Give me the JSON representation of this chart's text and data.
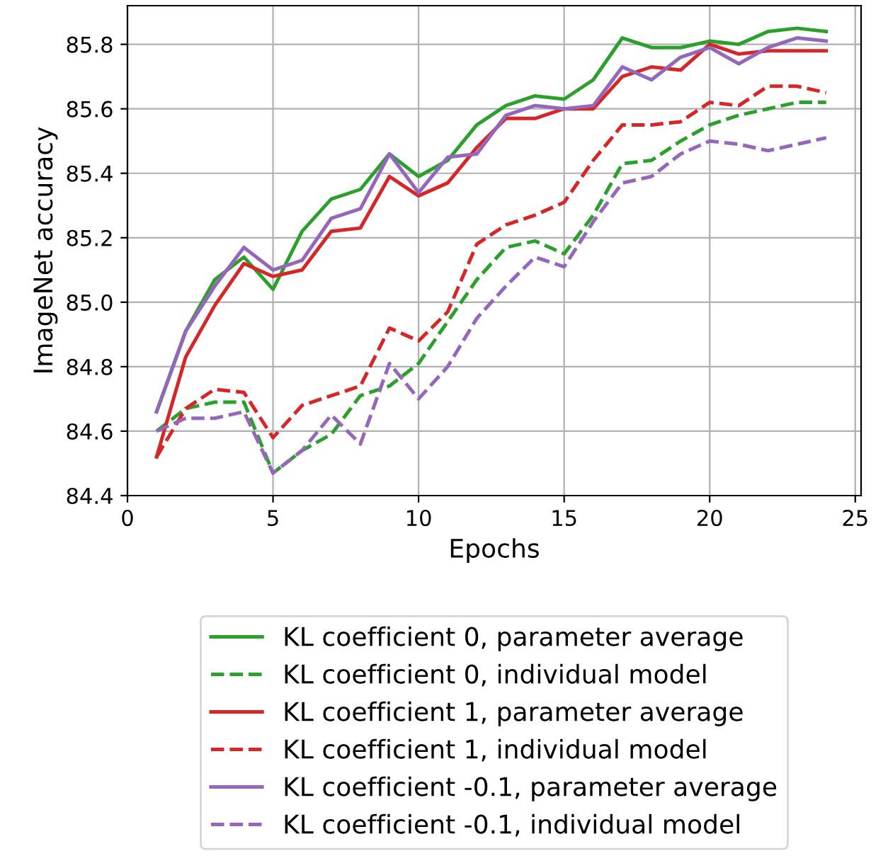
{
  "chart_data": {
    "type": "line",
    "xlabel": "Epochs",
    "ylabel": "ImageNet accuracy",
    "x": [
      1,
      2,
      3,
      4,
      5,
      6,
      7,
      8,
      9,
      10,
      11,
      12,
      13,
      14,
      15,
      16,
      17,
      18,
      19,
      20,
      21,
      22,
      23,
      24
    ],
    "xlim": [
      0,
      25.2
    ],
    "xticks": [
      0,
      5,
      10,
      15,
      20,
      25
    ],
    "ylim": [
      84.4,
      85.92
    ],
    "yticks": [
      {
        "value": 84.4,
        "label": "84.4"
      },
      {
        "value": 84.6,
        "label": "84.6"
      },
      {
        "value": 84.8,
        "label": "84.8"
      },
      {
        "value": 85.0,
        "label": "85.0"
      },
      {
        "value": 85.2,
        "label": "85.2"
      },
      {
        "value": 85.4,
        "label": "85.4"
      },
      {
        "value": 85.6,
        "label": "85.6"
      },
      {
        "value": 85.8,
        "label": "85.8"
      }
    ],
    "grid": true,
    "legend": "bottom",
    "marker": "none",
    "series": [
      {
        "name": "KL coefficient 0, parameter average",
        "color": "#2ca02c",
        "line_style": "solid",
        "values": [
          84.66,
          84.91,
          85.07,
          85.14,
          85.04,
          85.22,
          85.32,
          85.35,
          85.46,
          85.39,
          85.44,
          85.55,
          85.61,
          85.64,
          85.63,
          85.69,
          85.82,
          85.79,
          85.79,
          85.81,
          85.8,
          85.84,
          85.85,
          85.84
        ]
      },
      {
        "name": "KL coefficient 0, individual model",
        "color": "#2ca02c",
        "line_style": "dashed",
        "values": [
          84.6,
          84.67,
          84.69,
          84.69,
          84.47,
          84.54,
          84.59,
          84.71,
          84.74,
          84.81,
          84.94,
          85.07,
          85.17,
          85.19,
          85.15,
          85.27,
          85.43,
          85.44,
          85.5,
          85.55,
          85.58,
          85.6,
          85.62,
          85.62
        ]
      },
      {
        "name": "KL coefficient 1, parameter average",
        "color": "#d62728",
        "line_style": "solid",
        "values": [
          84.52,
          84.83,
          84.99,
          85.12,
          85.08,
          85.1,
          85.22,
          85.23,
          85.39,
          85.33,
          85.37,
          85.48,
          85.57,
          85.57,
          85.6,
          85.6,
          85.7,
          85.73,
          85.72,
          85.8,
          85.77,
          85.78,
          85.78,
          85.78
        ]
      },
      {
        "name": "KL coefficient 1, individual model",
        "color": "#d62728",
        "line_style": "dashed",
        "values": [
          84.52,
          84.67,
          84.73,
          84.72,
          84.58,
          84.68,
          84.71,
          84.74,
          84.92,
          84.88,
          84.97,
          85.18,
          85.24,
          85.27,
          85.31,
          85.44,
          85.55,
          85.55,
          85.56,
          85.62,
          85.61,
          85.67,
          85.67,
          85.65
        ]
      },
      {
        "name": "KL coefficient -0.1, parameter average",
        "color": "#9467bd",
        "line_style": "solid",
        "values": [
          84.66,
          84.91,
          85.05,
          85.17,
          85.1,
          85.13,
          85.26,
          85.29,
          85.46,
          85.34,
          85.45,
          85.46,
          85.58,
          85.61,
          85.6,
          85.61,
          85.73,
          85.69,
          85.76,
          85.79,
          85.74,
          85.79,
          85.82,
          85.81
        ]
      },
      {
        "name": "KL coefficient -0.1, individual model",
        "color": "#9467bd",
        "line_style": "dashed",
        "values": [
          84.6,
          84.64,
          84.64,
          84.66,
          84.47,
          84.54,
          84.65,
          84.56,
          84.81,
          84.7,
          84.8,
          84.95,
          85.05,
          85.14,
          85.11,
          85.25,
          85.37,
          85.39,
          85.46,
          85.5,
          85.49,
          85.47,
          85.49,
          85.51
        ]
      }
    ]
  }
}
